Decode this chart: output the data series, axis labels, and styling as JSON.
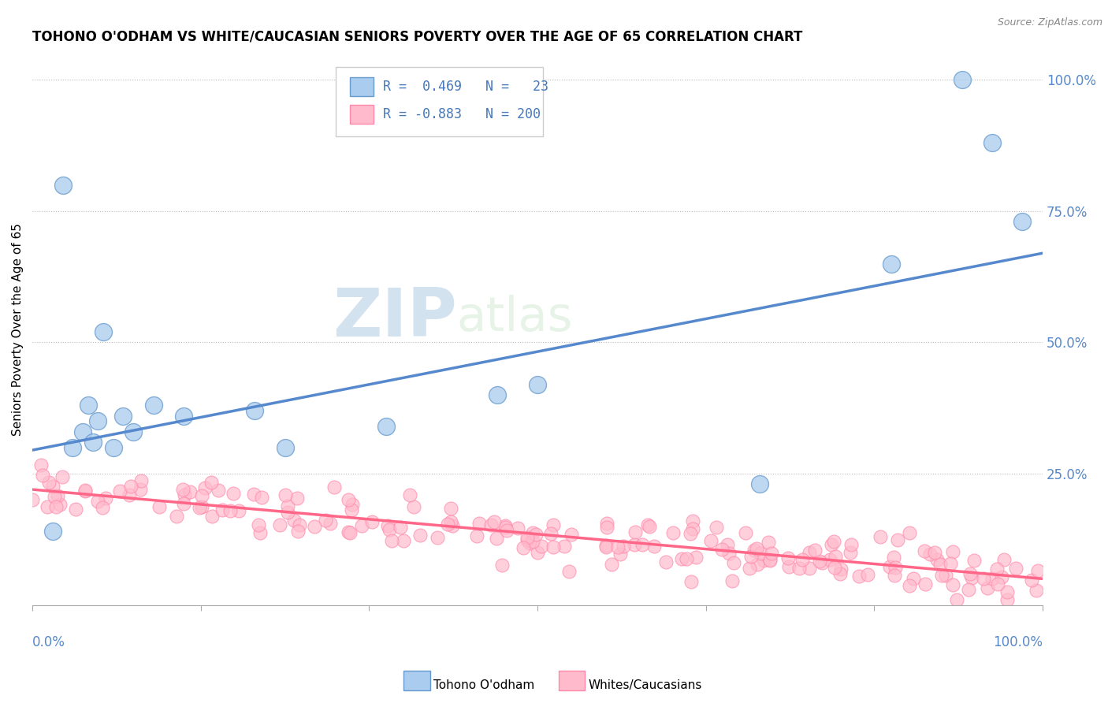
{
  "title": "TOHONO O'ODHAM VS WHITE/CAUCASIAN SENIORS POVERTY OVER THE AGE OF 65 CORRELATION CHART",
  "source": "Source: ZipAtlas.com",
  "ylabel": "Seniors Poverty Over the Age of 65",
  "legend_blue_label": "Tohono O'odham",
  "legend_pink_label": "Whites/Caucasians",
  "R_blue": 0.469,
  "N_blue": 23,
  "R_pink": -0.883,
  "N_pink": 200,
  "blue_fill": "#AACCEE",
  "blue_edge": "#6699CC",
  "pink_fill": "#FFBBCC",
  "pink_edge": "#FF88AA",
  "blue_line_color": "#5588CC",
  "pink_line_color": "#FF6688",
  "background_color": "#FFFFFF",
  "blue_scatter_x": [
    0.02,
    0.03,
    0.04,
    0.05,
    0.055,
    0.06,
    0.065,
    0.07,
    0.08,
    0.09,
    0.1,
    0.12,
    0.15,
    0.22,
    0.25,
    0.35,
    0.46,
    0.5,
    0.72,
    0.85,
    0.92,
    0.95,
    0.98
  ],
  "blue_scatter_y": [
    0.14,
    0.8,
    0.3,
    0.33,
    0.38,
    0.31,
    0.35,
    0.52,
    0.3,
    0.36,
    0.33,
    0.38,
    0.36,
    0.37,
    0.3,
    0.34,
    0.4,
    0.42,
    0.23,
    0.65,
    1.0,
    0.88,
    0.73
  ],
  "blue_line_x": [
    0.0,
    1.0
  ],
  "blue_line_y": [
    0.295,
    0.67
  ],
  "pink_line_x": [
    0.0,
    1.0
  ],
  "pink_line_y": [
    0.22,
    0.05
  ],
  "xlim": [
    0.0,
    1.0
  ],
  "ylim": [
    0.0,
    1.05
  ],
  "yticks": [
    0.25,
    0.5,
    0.75,
    1.0
  ],
  "ytick_labels": [
    "25.0%",
    "50.0%",
    "75.0%",
    "100.0%"
  ],
  "watermark_zip": "ZIP",
  "watermark_atlas": "atlas"
}
